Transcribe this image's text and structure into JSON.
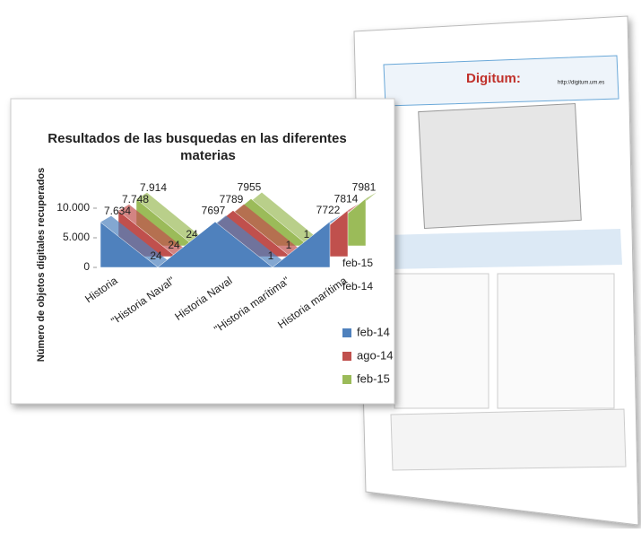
{
  "document": {
    "title": "Digitum:",
    "url": "http://digitum.um.es"
  },
  "chart_data": {
    "type": "area3d",
    "title": "Resultados de las busquedas en las diferentes materias",
    "y_label": "Número de objetos digitales recuperados",
    "categories": [
      "Historia",
      "\"Historia Naval\"",
      "Historia Naval",
      "\"Historia marítima\"",
      "Historia marítima"
    ],
    "series": [
      {
        "name": "feb-14",
        "color": "#4f81bd",
        "values": [
          7634,
          24,
          7697,
          1,
          7722
        ],
        "value_labels": [
          "7.634",
          "24",
          "7697",
          "1",
          "7722"
        ]
      },
      {
        "name": "ago-14",
        "color": "#c0504d",
        "values": [
          7748,
          24,
          7789,
          1,
          7814
        ],
        "value_labels": [
          "7.748",
          "24",
          "7789",
          "1",
          "7814"
        ]
      },
      {
        "name": "feb-15",
        "color": "#9bbb59",
        "values": [
          7914,
          24,
          7955,
          1,
          7981
        ],
        "value_labels": [
          "7.914",
          "24",
          "7955",
          "1",
          "7981"
        ]
      }
    ],
    "ylim": [
      0,
      10000
    ],
    "yticks": [
      0,
      {
        "value": 5000,
        "label": "5.000"
      },
      {
        "value": 10000,
        "label": "10.000"
      }
    ],
    "legend": "right"
  }
}
